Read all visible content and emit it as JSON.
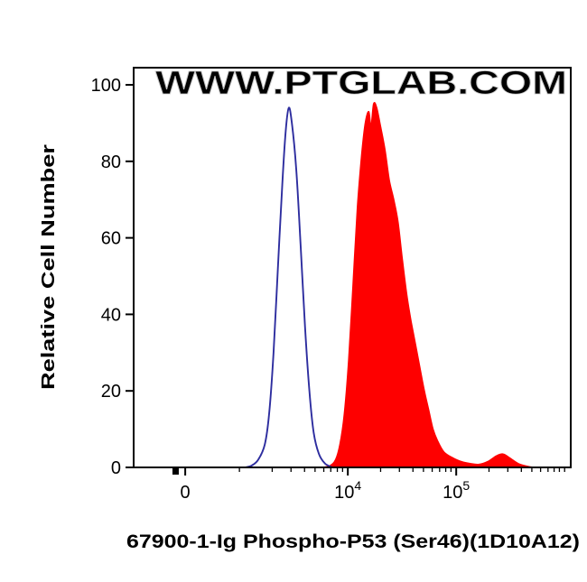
{
  "watermark": "WWW.PTGLAB.COM",
  "colors": {
    "stained_fill": "#fe0000",
    "control_stroke": "#2d2d9f",
    "watermark_gray": "#dcdcdc",
    "axis": "#000000"
  },
  "chart_data": {
    "type": "area",
    "subtype": "flow-cytometry-histogram-overlay",
    "title": "",
    "xlabel": "67900-1-Ig Phospho-P53 (Ser46)(1D10A12)",
    "x_scale": "biexponential log (0, 10^4, 10^5)",
    "ylim": [
      0,
      100
    ],
    "y_axis": {
      "label": "Relative Cell Number",
      "ticks": [
        0,
        20,
        40,
        60,
        80,
        100
      ]
    },
    "x_axis": {
      "major_ticks": [
        {
          "label": "0",
          "pos": 0.118
        },
        {
          "label": "10⁴",
          "base": "10",
          "exp": "4",
          "pos": 0.49
        },
        {
          "label": "10⁵",
          "base": "10",
          "exp": "5",
          "pos": 0.738
        }
      ],
      "minor_ticks": [
        0.242,
        0.317,
        0.36,
        0.391,
        0.415,
        0.435,
        0.451,
        0.466,
        0.478,
        0.565,
        0.608,
        0.639,
        0.663,
        0.683,
        0.7,
        0.714,
        0.726,
        0.813,
        0.856,
        0.887,
        0.911,
        0.931,
        0.948,
        0.962,
        0.974,
        0.986
      ],
      "bold_tick_pos": 0.096
    },
    "series": [
      {
        "id": "stained",
        "name": "Phospho-P53 (Ser46) stained sample (red filled histogram)",
        "color": "#fe0000",
        "fill": "#fe0000",
        "peak_height": 95,
        "peak_x_approx": "≈2×10⁴",
        "points": [
          [
            0.435,
            0
          ],
          [
            0.45,
            0.5
          ],
          [
            0.462,
            2
          ],
          [
            0.472,
            6
          ],
          [
            0.482,
            14
          ],
          [
            0.492,
            28
          ],
          [
            0.502,
            48
          ],
          [
            0.512,
            68
          ],
          [
            0.522,
            82
          ],
          [
            0.53,
            90
          ],
          [
            0.538,
            93
          ],
          [
            0.543,
            89
          ],
          [
            0.549,
            95
          ],
          [
            0.556,
            94
          ],
          [
            0.565,
            89
          ],
          [
            0.575,
            83
          ],
          [
            0.585,
            75
          ],
          [
            0.595,
            70
          ],
          [
            0.605,
            64
          ],
          [
            0.615,
            54
          ],
          [
            0.625,
            45
          ],
          [
            0.635,
            38
          ],
          [
            0.645,
            32
          ],
          [
            0.655,
            26
          ],
          [
            0.665,
            20
          ],
          [
            0.675,
            15
          ],
          [
            0.685,
            10
          ],
          [
            0.695,
            7
          ],
          [
            0.71,
            4
          ],
          [
            0.73,
            2.5
          ],
          [
            0.75,
            1.5
          ],
          [
            0.77,
            1
          ],
          [
            0.79,
            0.8
          ],
          [
            0.81,
            1.5
          ],
          [
            0.83,
            3
          ],
          [
            0.845,
            3.5
          ],
          [
            0.86,
            2.5
          ],
          [
            0.88,
            1
          ],
          [
            0.9,
            0.3
          ],
          [
            0.915,
            0
          ]
        ]
      },
      {
        "id": "control",
        "name": "Control (blue open histogram)",
        "color": "#2d2d9f",
        "fill": "none",
        "peak_height": 94,
        "peak_x_approx": "≈3×10³",
        "points": [
          [
            0.255,
            0
          ],
          [
            0.27,
            0.5
          ],
          [
            0.285,
            2
          ],
          [
            0.3,
            6
          ],
          [
            0.31,
            14
          ],
          [
            0.32,
            30
          ],
          [
            0.33,
            52
          ],
          [
            0.34,
            74
          ],
          [
            0.348,
            88
          ],
          [
            0.355,
            94
          ],
          [
            0.362,
            90
          ],
          [
            0.372,
            78
          ],
          [
            0.382,
            58
          ],
          [
            0.392,
            37
          ],
          [
            0.402,
            20
          ],
          [
            0.412,
            9
          ],
          [
            0.424,
            3.5
          ],
          [
            0.438,
            1
          ],
          [
            0.455,
            0
          ]
        ]
      }
    ]
  }
}
